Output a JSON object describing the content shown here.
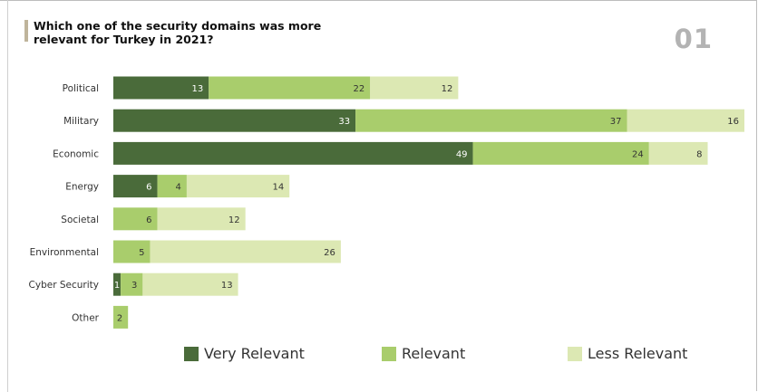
{
  "header": {
    "title": "Which one of the security domains was more relevant for Turkey in 2021?",
    "page_number": "01"
  },
  "colors": {
    "very_relevant": "#4a6b3a",
    "relevant": "#a9cd6c",
    "less_relevant": "#dce8b3",
    "accent": "#bfb49b"
  },
  "chart_data": {
    "type": "bar",
    "orientation": "horizontal",
    "stacked": true,
    "categories": [
      "Political",
      "Military",
      "Economic",
      "Energy",
      "Societal",
      "Environmental",
      "Cyber Security",
      "Other"
    ],
    "series": [
      {
        "name": "Very Relevant",
        "values": [
          13,
          33,
          49,
          6,
          0,
          0,
          1,
          0
        ]
      },
      {
        "name": "Relevant",
        "values": [
          22,
          37,
          24,
          4,
          6,
          5,
          3,
          2
        ]
      },
      {
        "name": "Less Relevant",
        "values": [
          12,
          16,
          8,
          14,
          12,
          26,
          13,
          0
        ]
      }
    ],
    "xlim": [
      0,
      86
    ],
    "grid": false,
    "legend": "bottom"
  }
}
